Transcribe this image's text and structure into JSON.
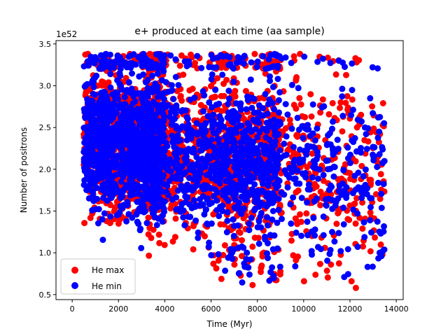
{
  "chart_data": {
    "type": "scatter",
    "title": "e+ produced at each time (aa sample)",
    "xlabel": "Time (Myr)",
    "ylabel": "Number of positrons",
    "y_offset_label": "1e52",
    "xlim": [
      -700,
      14300
    ],
    "ylim": [
      0.44,
      3.54
    ],
    "x_ticks": [
      0,
      2000,
      4000,
      6000,
      8000,
      10000,
      12000,
      14000
    ],
    "x_tick_labels": [
      "0",
      "2000",
      "4000",
      "6000",
      "8000",
      "10000",
      "12000",
      "14000"
    ],
    "y_ticks": [
      0.5,
      1.0,
      1.5,
      2.0,
      2.5,
      3.0,
      3.5
    ],
    "y_tick_labels": [
      "0.5",
      "1.0",
      "1.5",
      "2.0",
      "2.5",
      "3.0",
      "3.5"
    ],
    "grid": false,
    "legend_position": "lower-left",
    "generator": {
      "x_range": [
        0,
        13500
      ],
      "points_per_series": 2200,
      "upper_bound": 3.38,
      "seed": 7
    },
    "series": [
      {
        "name": "He max",
        "color": "#ff0000"
      },
      {
        "name": "He min",
        "color": "#0000ff"
      }
    ]
  }
}
